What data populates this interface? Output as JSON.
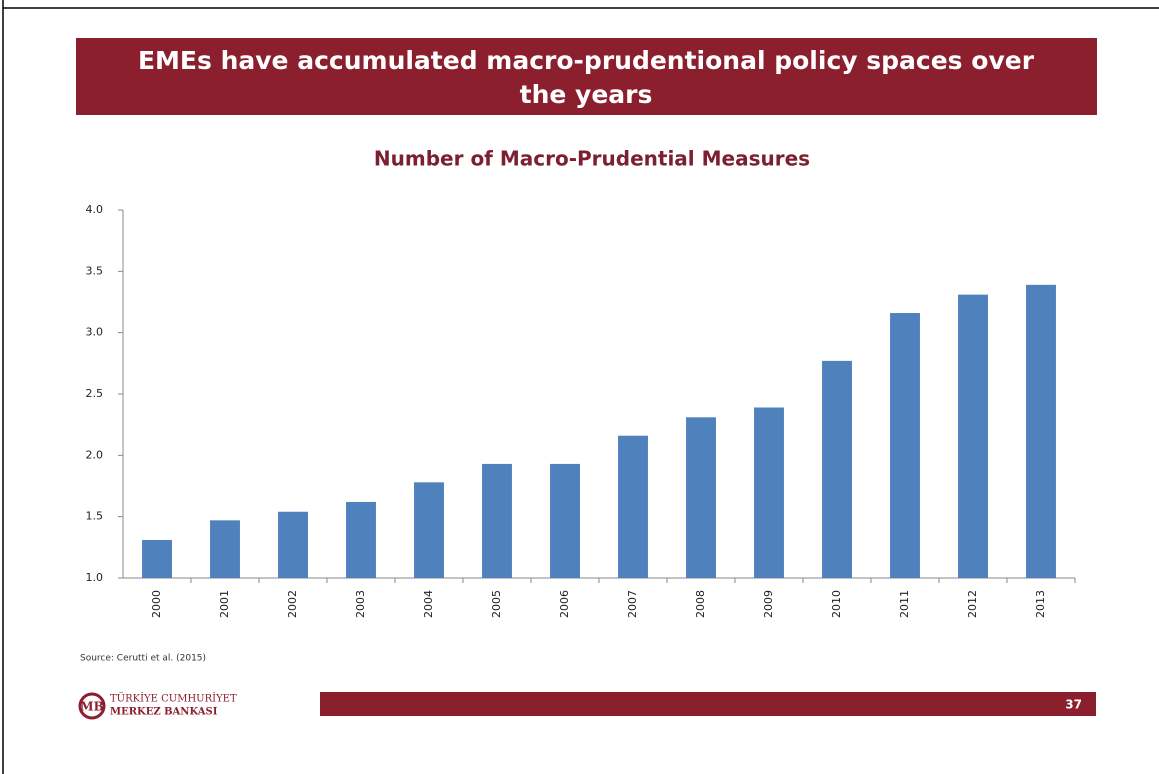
{
  "slide": {
    "title_lines": [
      "EMEs have accumulated macro-prudentional policy spaces over",
      "the years"
    ],
    "source": "Source: Cerutti et al. (2015)",
    "logo_lines": [
      "TÜRKİYE CUMHURİYET",
      "MERKEZ BANKASI"
    ],
    "page_number": 37
  },
  "chart_data": {
    "type": "bar",
    "title": "Number of Macro-Prudential Measures",
    "categories": [
      "2000",
      "2001",
      "2002",
      "2003",
      "2004",
      "2005",
      "2006",
      "2007",
      "2008",
      "2009",
      "2010",
      "2011",
      "2012",
      "2013"
    ],
    "values": [
      1.31,
      1.47,
      1.54,
      1.62,
      1.78,
      1.93,
      1.93,
      2.16,
      2.31,
      2.39,
      2.77,
      3.16,
      3.31,
      3.39
    ],
    "color": "#4f81bd",
    "ylim": [
      1,
      4
    ],
    "yticks": [
      {
        "value": 1,
        "label": "1.0"
      },
      {
        "value": 1.5,
        "label": "1.5"
      },
      {
        "value": 2,
        "label": "2.0"
      },
      {
        "value": 2.5,
        "label": "2.5"
      },
      {
        "value": 3,
        "label": "3.0"
      },
      {
        "value": 3.5,
        "label": "3.5"
      },
      {
        "value": 4,
        "label": "4.0"
      }
    ],
    "grid": false
  }
}
